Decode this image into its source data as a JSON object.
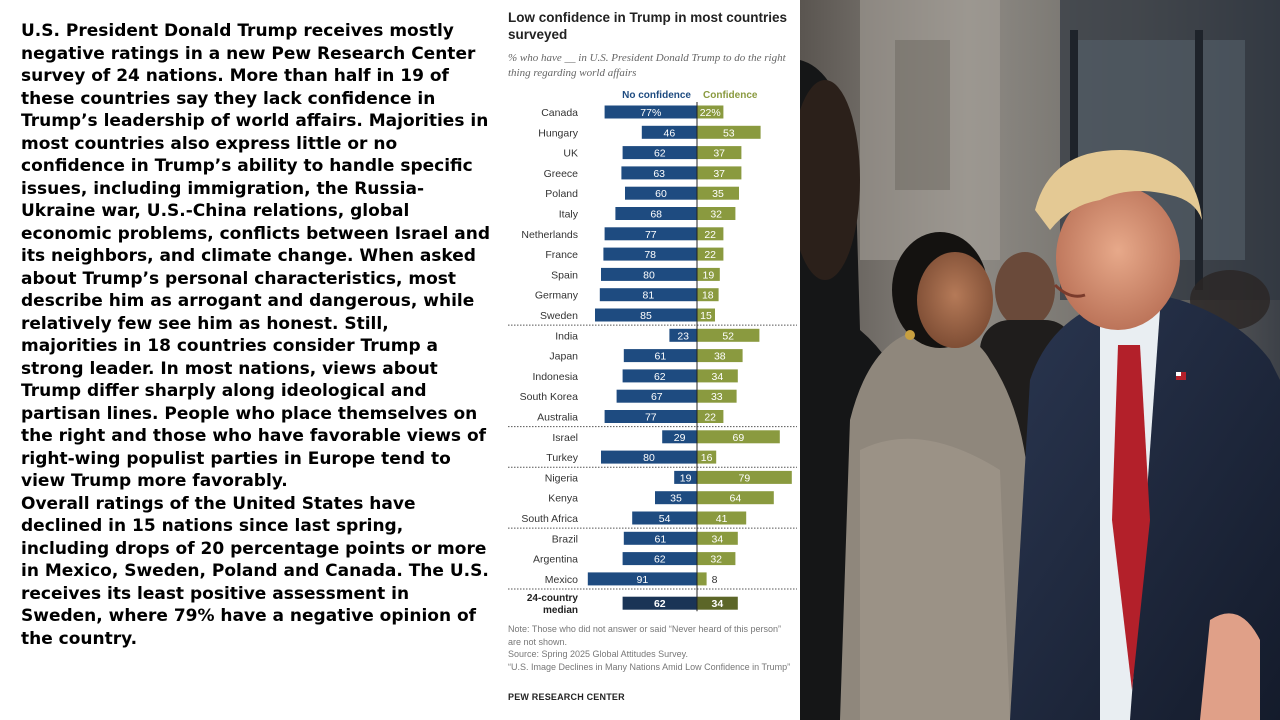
{
  "article": {
    "paragraph1": "U.S. President Donald Trump receives mostly negative ratings in a new Pew Research Center survey of 24 nations. More than half in 19 of these countries say they lack confidence in Trump’s leadership of world affairs. Majorities in most countries also express little or no confidence in Trump’s ability to handle specific issues, including immigration, the Russia-Ukraine war, U.S.-China relations, global economic problems, conflicts between Israel and its neighbors, and climate change. When asked about Trump’s personal characteristics, most describe him as arrogant and dangerous, while relatively few see him as honest. Still, majorities in 18 countries consider Trump a strong leader. In most nations, views about Trump differ sharply along ideological and partisan lines. People who place themselves on the right and those who have favorable views of right-wing populist parties in Europe tend to view Trump more favorably.",
    "paragraph2": "Overall ratings of the United States have declined in 15 nations since last spring, including drops of 20 percentage points or more in Mexico, Sweden, Poland and Canada. The U.S. receives its least positive assessment in Sweden, where 79% have a negative opinion of the country."
  },
  "chart_data": {
    "type": "bar",
    "orientation": "diverging-horizontal",
    "title": "Low confidence in Trump in most countries surveyed",
    "subtitle": "% who have __ in U.S. President Donald Trump to do the right thing regarding world affairs",
    "categories": [
      "Canada",
      "Hungary",
      "UK",
      "Greece",
      "Poland",
      "Italy",
      "Netherlands",
      "France",
      "Spain",
      "Germany",
      "Sweden",
      "India",
      "Japan",
      "Indonesia",
      "South Korea",
      "Australia",
      "Israel",
      "Turkey",
      "Nigeria",
      "Kenya",
      "South Africa",
      "Brazil",
      "Argentina",
      "Mexico"
    ],
    "groups_end_after": [
      "Sweden",
      "Australia",
      "Turkey",
      "South Africa",
      "Mexico"
    ],
    "series": [
      {
        "name": "No confidence",
        "color": "#1e4b80",
        "values": [
          77,
          46,
          62,
          63,
          60,
          68,
          77,
          78,
          80,
          81,
          85,
          23,
          61,
          62,
          67,
          77,
          29,
          80,
          19,
          35,
          54,
          61,
          62,
          91
        ]
      },
      {
        "name": "Confidence",
        "color": "#8a9a3f",
        "values": [
          22,
          53,
          37,
          37,
          35,
          32,
          22,
          22,
          19,
          18,
          15,
          52,
          38,
          34,
          33,
          22,
          69,
          16,
          79,
          64,
          41,
          34,
          32,
          8
        ]
      }
    ],
    "value_labels_first_row_suffix": "%",
    "median": {
      "label_line1": "24-country",
      "label_line2": "median",
      "no_confidence": 62,
      "confidence": 34,
      "colors": [
        "#1a3456",
        "#5c6628"
      ]
    },
    "notes": [
      "Note: Those who did not answer or said “Never heard of this person” are not shown.",
      "Source: Spring 2025 Global Attitudes Survey.",
      "“U.S. Image Declines in Many Nations Amid Low Confidence in Trump”"
    ],
    "source_org": "PEW RESEARCH CENTER"
  },
  "colors": {
    "accent_blue": "#1e4b80",
    "accent_green": "#8a9a3f",
    "text": "#000000"
  }
}
